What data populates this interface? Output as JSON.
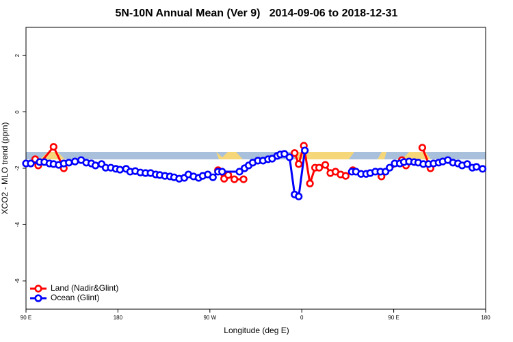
{
  "chart_data": {
    "type": "line",
    "title": "5N-10N Annual Mean (Ver 9)   2014-09-06 to 2018-12-31",
    "x_label": "Longitude (deg E)",
    "y_label": "XCO2 - MLO trend (ppm)",
    "xlim": [
      90,
      540
    ],
    "ylim": [
      -7,
      3
    ],
    "xticks": [
      {
        "value": 90,
        "label": "90 E"
      },
      {
        "value": 180,
        "label": "180"
      },
      {
        "value": 270,
        "label": "90 W"
      },
      {
        "value": 360,
        "label": "0"
      },
      {
        "value": 450,
        "label": "90 E"
      },
      {
        "value": 540,
        "label": "180"
      }
    ],
    "yticks": [
      2,
      0,
      -2,
      -4,
      -6
    ],
    "legend": "lower left",
    "series": [
      {
        "name": "Land (Nadir&Glint)",
        "color": "#ff0000",
        "x": [
          99,
          102,
          117,
          127,
          null,
          278,
          284,
          288,
          294,
          303,
          null,
          353,
          357,
          362,
          368,
          373,
          377,
          383,
          388,
          393,
          398,
          403,
          410,
          null,
          438,
          458,
          462,
          null,
          478,
          486
        ],
        "values": [
          -1.68,
          -1.9,
          -1.24,
          -2.0,
          null,
          -2.07,
          -2.37,
          -2.24,
          -2.39,
          -2.39,
          null,
          -1.46,
          -1.85,
          -1.2,
          -2.54,
          -1.98,
          -1.98,
          -1.88,
          -2.17,
          -2.12,
          -2.22,
          -2.27,
          -2.07,
          null,
          -2.29,
          -1.71,
          -1.9,
          null,
          -1.27,
          -2.0
        ]
      },
      {
        "name": "Ocean (Glint)",
        "color": "#0000ff",
        "x": [
          90,
          94.7,
          103.4,
          108,
          113,
          117,
          122,
          127,
          132,
          138,
          144,
          149,
          154,
          158,
          164,
          168,
          173,
          178,
          182,
          188,
          192,
          197,
          202,
          207,
          212,
          217,
          221,
          226,
          231,
          235,
          240,
          245,
          249,
          254,
          259,
          263,
          268,
          273,
          278,
          282,
          299,
          304,
          308,
          312,
          317,
          322,
          327,
          331,
          336,
          339,
          343,
          348,
          353,
          357,
          363,
          null,
          409,
          413,
          418,
          423,
          427,
          432,
          437,
          442,
          446,
          451,
          456,
          460,
          465,
          470,
          474,
          479,
          484,
          489,
          494,
          498,
          503,
          508,
          513,
          517,
          522,
          527,
          531,
          537
        ],
        "values": [
          -1.83,
          -1.83,
          -1.78,
          -1.78,
          -1.83,
          -1.85,
          -1.88,
          -1.83,
          -1.8,
          -1.76,
          -1.71,
          -1.8,
          -1.83,
          -1.9,
          -1.85,
          -1.98,
          -1.98,
          -2.02,
          -2.05,
          -2.02,
          -2.12,
          -2.1,
          -2.15,
          -2.17,
          -2.17,
          -2.22,
          -2.24,
          -2.27,
          -2.29,
          -2.32,
          -2.37,
          -2.34,
          -2.22,
          -2.29,
          -2.34,
          -2.27,
          -2.22,
          -2.32,
          -2.12,
          -2.12,
          -2.12,
          -2.0,
          -1.9,
          -1.8,
          -1.73,
          -1.73,
          -1.68,
          -1.66,
          -1.56,
          -1.51,
          -1.49,
          -1.61,
          -2.93,
          -3.0,
          -1.37,
          null,
          -2.12,
          -2.12,
          -2.2,
          -2.2,
          -2.17,
          -2.12,
          -2.12,
          -2.12,
          -1.98,
          -1.83,
          -1.83,
          -1.78,
          -1.76,
          -1.78,
          -1.8,
          -1.85,
          -1.85,
          -1.83,
          -1.8,
          -1.76,
          -1.71,
          -1.8,
          -1.83,
          -1.9,
          -1.85,
          -1.98,
          -1.95,
          -2.02
        ]
      }
    ]
  }
}
